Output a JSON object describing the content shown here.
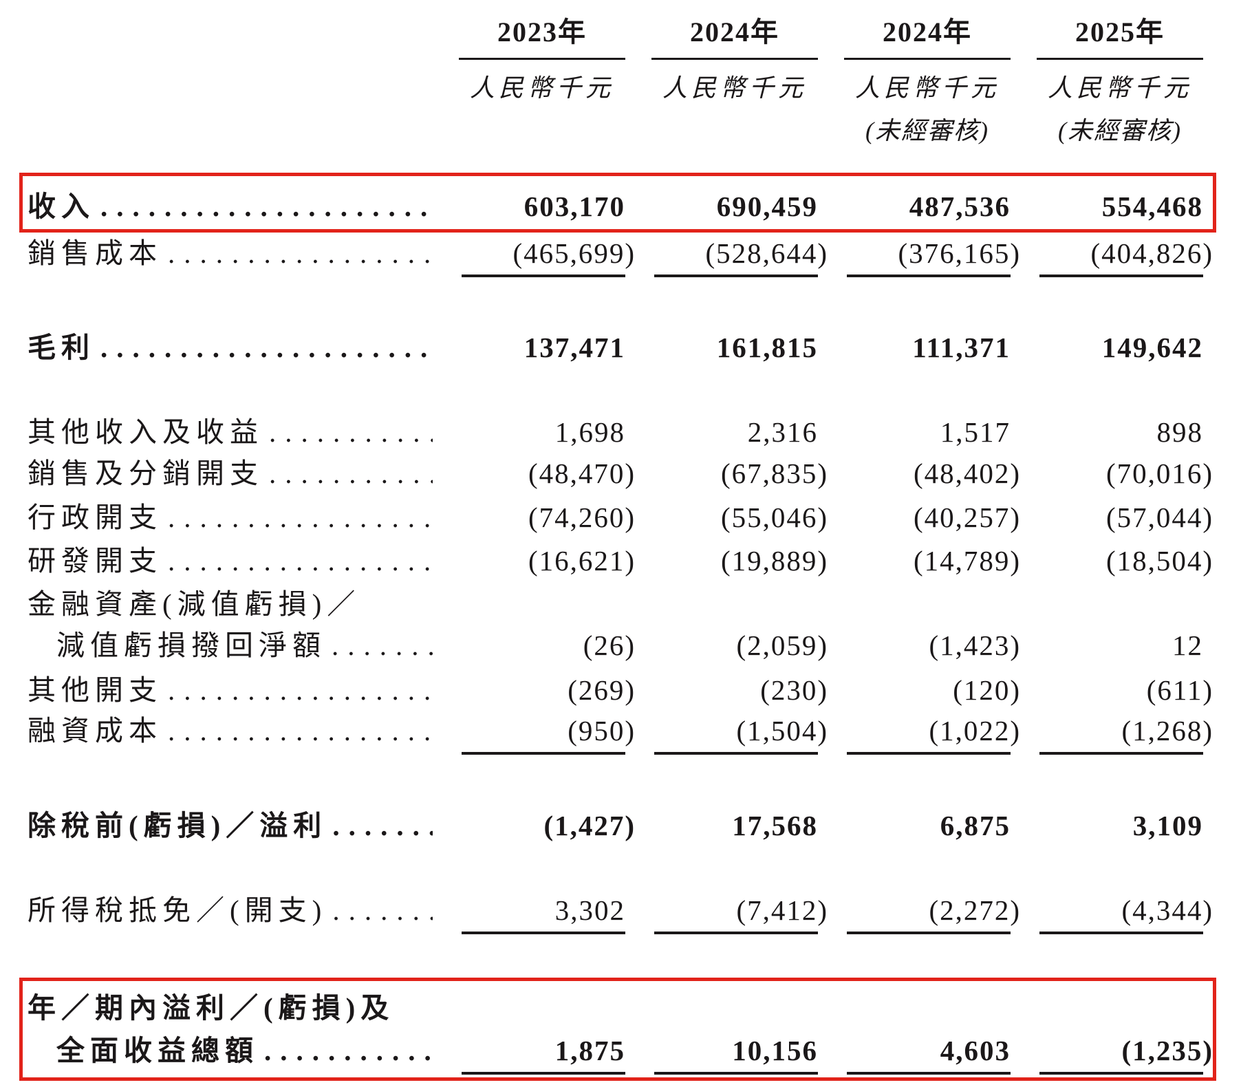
{
  "table": {
    "columns": [
      {
        "year": "2023年",
        "unit": "人民幣千元",
        "unaudited": ""
      },
      {
        "year": "2024年",
        "unit": "人民幣千元",
        "unaudited": ""
      },
      {
        "year": "2024年",
        "unit": "人民幣千元",
        "unaudited": "(未經審核)"
      },
      {
        "year": "2025年",
        "unit": "人民幣千元",
        "unaudited": "(未經審核)"
      }
    ],
    "rows": [
      {
        "label": "收入",
        "values": [
          "603,170",
          "690,459",
          "487,536",
          "554,468"
        ],
        "bold": true,
        "highlighted": true
      },
      {
        "label": "銷售成本",
        "values": [
          "(465,699)",
          "(528,644)",
          "(376,165)",
          "(404,826)"
        ],
        "underline": true
      },
      {
        "label": "毛利",
        "values": [
          "137,471",
          "161,815",
          "111,371",
          "149,642"
        ],
        "bold": true
      },
      {
        "label": "其他收入及收益",
        "values": [
          "1,698",
          "2,316",
          "1,517",
          "898"
        ]
      },
      {
        "label": "銷售及分銷開支",
        "values": [
          "(48,470)",
          "(67,835)",
          "(48,402)",
          "(70,016)"
        ]
      },
      {
        "label": "行政開支",
        "values": [
          "(74,260)",
          "(55,046)",
          "(40,257)",
          "(57,044)"
        ]
      },
      {
        "label": "研發開支",
        "values": [
          "(16,621)",
          "(19,889)",
          "(14,789)",
          "(18,504)"
        ]
      },
      {
        "label": "金融資產(減值虧損)／",
        "values": []
      },
      {
        "label": "減值虧損撥回淨額",
        "values": [
          "(26)",
          "(2,059)",
          "(1,423)",
          "12"
        ],
        "indent": true
      },
      {
        "label": "其他開支",
        "values": [
          "(269)",
          "(230)",
          "(120)",
          "(611)"
        ]
      },
      {
        "label": "融資成本",
        "values": [
          "(950)",
          "(1,504)",
          "(1,022)",
          "(1,268)"
        ],
        "underline": true
      },
      {
        "label": "除稅前(虧損)／溢利",
        "values": [
          "(1,427)",
          "17,568",
          "6,875",
          "3,109"
        ],
        "bold": true
      },
      {
        "label": "所得稅抵免／(開支)",
        "values": [
          "3,302",
          "(7,412)",
          "(2,272)",
          "(4,344)"
        ],
        "underline": true
      },
      {
        "label": "年／期內溢利／(虧損)及",
        "values": [],
        "bold": true
      },
      {
        "label": "全面收益總額",
        "values": [
          "1,875",
          "10,156",
          "4,603",
          "(1,235)"
        ],
        "bold": true,
        "indent": true,
        "underline": true,
        "highlighted": true
      }
    ],
    "highlight_color": "#e2231a",
    "text_color": "#1b1819"
  }
}
